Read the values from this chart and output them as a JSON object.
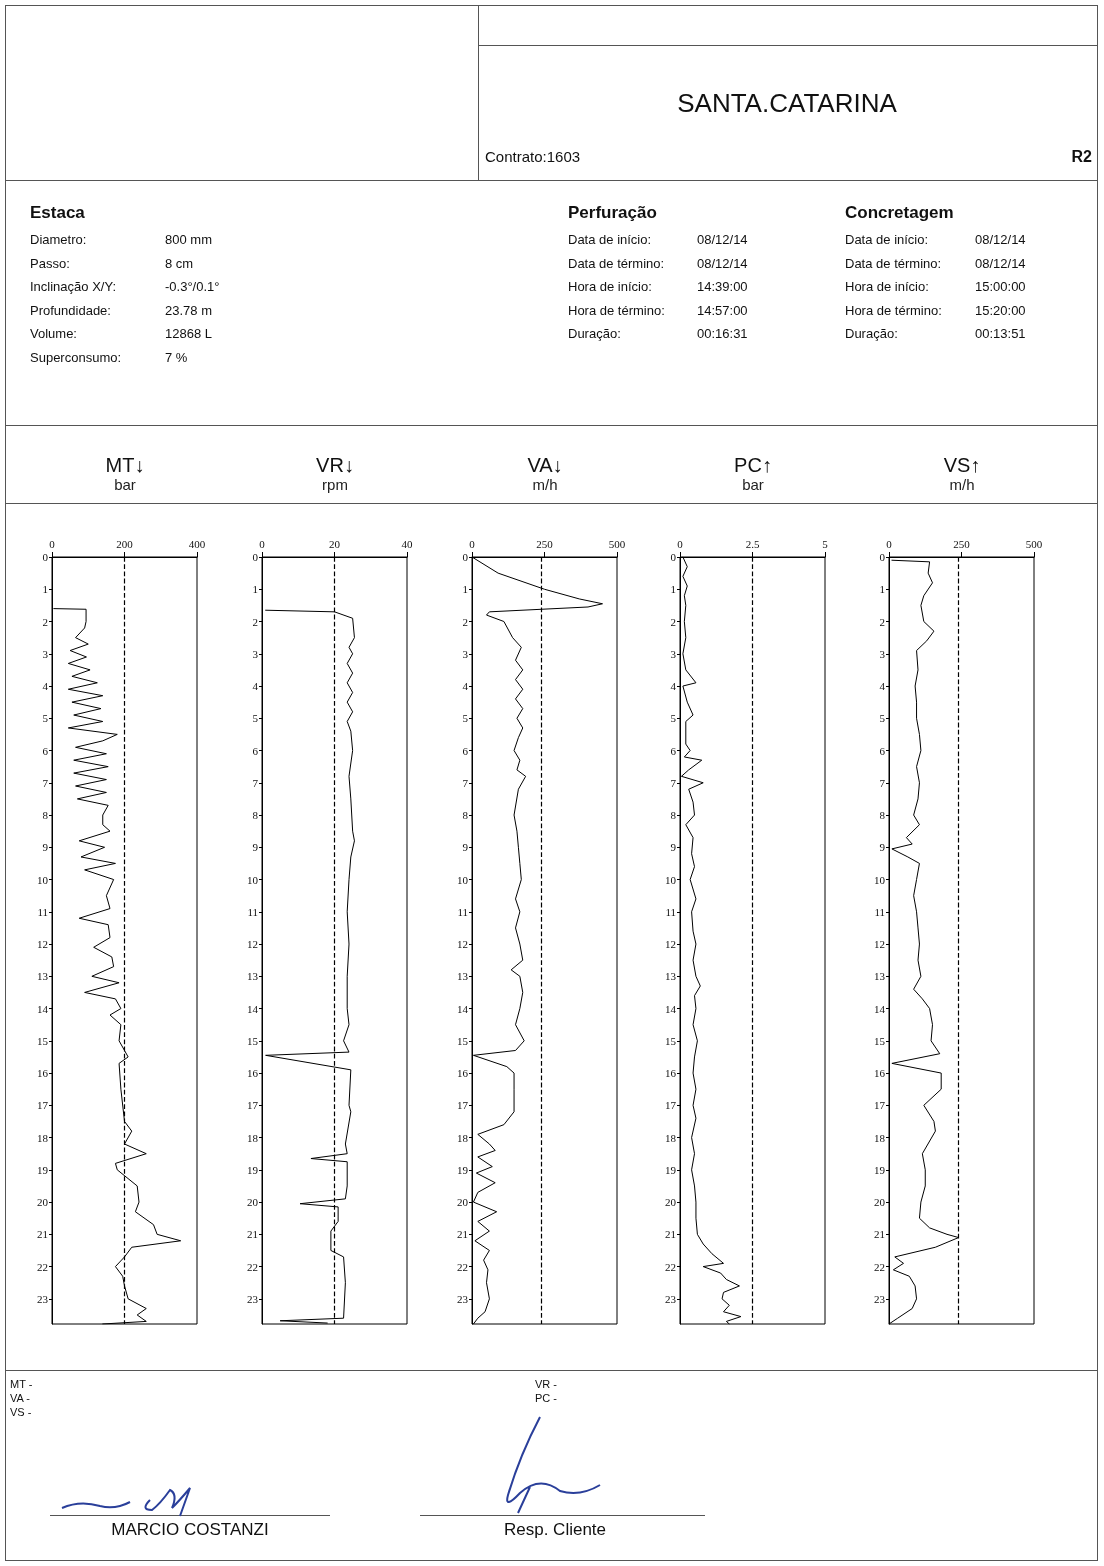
{
  "chart_data": [
    {
      "type": "other",
      "title": "SANTA.CATARINA",
      "annotations": [
        "Contrato:1603",
        "R2",
        "Estaca",
        "Diametro:",
        "800 mm",
        "Passo:",
        "8 cm",
        "Inclinação X/Y:",
        "-0.3°/0.1°",
        "Profundidade:",
        "23.78 m",
        "Volume:",
        "12868 L",
        "Superconsumo:",
        "7 %",
        "Perfuração",
        "Data de início:",
        "08/12/14",
        "Data de término:",
        "08/12/14",
        "Hora de início:",
        "14:39:00",
        "Hora de término:",
        "14:57:00",
        "Duração:",
        "00:16:31",
        "Concretagem",
        "Data de início:",
        "08/12/14",
        "Data de término:",
        "08/12/14",
        "Hora de início:",
        "15:00:00",
        "Hora de término:",
        "15:20:00",
        "Duração:",
        "00:13:51"
      ]
    },
    {
      "type": "line",
      "title": "MT↓",
      "subtitle": "bar",
      "xlim": [
        0,
        400
      ],
      "xticks": [
        0,
        200,
        400
      ],
      "ylim": [
        23.78,
        0
      ],
      "yticks": [
        0,
        1,
        2,
        3,
        4,
        5,
        6,
        7,
        8,
        9,
        10,
        11,
        12,
        13,
        14,
        15,
        16,
        17,
        18,
        19,
        20,
        21,
        22,
        23
      ],
      "grid": false,
      "ref_lines": [
        {
          "axis": "x",
          "value": 200,
          "line_style": "dashed",
          "color": "#000000"
        }
      ],
      "series": [
        {
          "color": "#000000",
          "x": [
            5,
            94,
            94,
            90,
            65,
            100,
            50,
            95,
            45,
            105,
            55,
            125,
            45,
            140,
            55,
            135,
            60,
            140,
            45,
            180,
            140,
            65,
            150,
            60,
            155,
            60,
            150,
            65,
            150,
            70,
            155,
            140,
            140,
            160,
            75,
            145,
            80,
            175,
            90,
            170,
            150,
            160,
            75,
            155,
            160,
            115,
            165,
            170,
            110,
            185,
            90,
            175,
            190,
            160,
            190,
            185,
            210,
            185,
            190,
            200,
            220,
            200,
            260,
            175,
            180,
            235,
            240,
            230,
            280,
            290,
            355,
            220,
            200,
            175,
            195,
            200,
            210,
            260,
            235,
            260,
            140
          ],
          "values": [
            1.6,
            1.62,
            2.0,
            2.2,
            2.5,
            2.7,
            2.9,
            3.1,
            3.3,
            3.5,
            3.7,
            3.9,
            4.1,
            4.3,
            4.5,
            4.7,
            4.9,
            5.1,
            5.3,
            5.5,
            5.7,
            5.9,
            6.1,
            6.3,
            6.5,
            6.7,
            6.9,
            7.1,
            7.3,
            7.5,
            7.7,
            8.0,
            8.3,
            8.5,
            8.8,
            9.0,
            9.3,
            9.5,
            9.7,
            10.0,
            10.5,
            10.9,
            11.2,
            11.4,
            11.8,
            12.1,
            12.4,
            12.7,
            13.0,
            13.2,
            13.5,
            13.7,
            14.0,
            14.2,
            14.5,
            15.0,
            15.5,
            15.7,
            16.5,
            17.5,
            17.8,
            18.2,
            18.5,
            18.8,
            19.0,
            19.5,
            20.0,
            20.3,
            20.7,
            21.0,
            21.2,
            21.4,
            21.7,
            22.0,
            22.3,
            22.6,
            23.0,
            23.3,
            23.5,
            23.7,
            23.78
          ]
        }
      ]
    },
    {
      "type": "line",
      "title": "VR↓",
      "subtitle": "rpm",
      "xlim": [
        0,
        40
      ],
      "xticks": [
        0,
        20,
        40
      ],
      "ylim": [
        23.78,
        0
      ],
      "yticks": [
        0,
        1,
        2,
        3,
        4,
        5,
        6,
        7,
        8,
        9,
        10,
        11,
        12,
        13,
        14,
        15,
        16,
        17,
        18,
        19,
        20,
        21,
        22,
        23
      ],
      "grid": false,
      "ref_lines": [
        {
          "axis": "x",
          "value": 20,
          "line_style": "dashed",
          "color": "#000000"
        }
      ],
      "series": [
        {
          "color": "#000000",
          "x": [
            1,
            20,
            25,
            25.5,
            24,
            25,
            23.5,
            25,
            23.5,
            25,
            23.5,
            25,
            23.5,
            24.5,
            25,
            24,
            24.5,
            25,
            25.5,
            24.5,
            24,
            23.5,
            24,
            23.5,
            23.5,
            24,
            22.5,
            24,
            1,
            24.5,
            24,
            24.5,
            23,
            23.5,
            13.5,
            23.5,
            23.5,
            23,
            10.5,
            21,
            21,
            19,
            19,
            22.5,
            23,
            22.5,
            5,
            18
          ],
          "values": [
            1.65,
            1.7,
            1.9,
            2.5,
            2.8,
            3.0,
            3.3,
            3.6,
            3.9,
            4.2,
            4.5,
            4.8,
            5.1,
            5.4,
            6.0,
            6.8,
            7.5,
            8.5,
            8.8,
            9.3,
            10.0,
            11.0,
            12.0,
            13.0,
            14.0,
            14.5,
            15.0,
            15.35,
            15.45,
            15.9,
            17.0,
            17.2,
            18.2,
            18.5,
            18.65,
            18.75,
            19.5,
            19.9,
            20.05,
            20.15,
            20.6,
            20.9,
            21.5,
            21.7,
            22.5,
            23.6,
            23.68,
            23.75
          ]
        }
      ]
    },
    {
      "type": "line",
      "title": "VA↓",
      "subtitle": "m/h",
      "xlim": [
        0,
        500
      ],
      "xticks": [
        0,
        250,
        500
      ],
      "ylim": [
        23.78,
        0
      ],
      "yticks": [
        0,
        1,
        2,
        3,
        4,
        5,
        6,
        7,
        8,
        9,
        10,
        11,
        12,
        13,
        14,
        15,
        16,
        17,
        18,
        19,
        20,
        21,
        22,
        23
      ],
      "grid": false,
      "ref_lines": [
        {
          "axis": "x",
          "value": 240,
          "line_style": "dashed",
          "color": "#000000"
        }
      ],
      "series": [
        {
          "color": "#000000",
          "x": [
            0,
            90,
            250,
            370,
            450,
            400,
            60,
            50,
            110,
            140,
            170,
            150,
            175,
            150,
            175,
            150,
            175,
            155,
            175,
            160,
            145,
            165,
            155,
            185,
            160,
            145,
            155,
            160,
            165,
            170,
            150,
            165,
            150,
            165,
            175,
            135,
            165,
            175,
            165,
            150,
            180,
            150,
            5,
            120,
            145,
            145,
            145,
            110,
            20,
            60,
            80,
            20,
            70,
            15,
            80,
            20,
            5,
            85,
            20,
            60,
            10,
            60,
            40,
            55,
            50,
            60,
            45,
            20,
            5
          ],
          "values": [
            0,
            0.5,
            1.0,
            1.3,
            1.45,
            1.55,
            1.7,
            1.8,
            2.0,
            2.5,
            2.8,
            3.2,
            3.5,
            3.8,
            4.1,
            4.4,
            4.7,
            5.0,
            5.3,
            5.6,
            6.0,
            6.3,
            6.6,
            6.8,
            7.2,
            8.0,
            8.5,
            9.0,
            9.5,
            10.0,
            10.6,
            11.0,
            11.5,
            12.0,
            12.5,
            12.8,
            13.0,
            13.5,
            14.0,
            14.5,
            15.0,
            15.3,
            15.45,
            15.8,
            16.0,
            16.5,
            17.2,
            17.6,
            17.9,
            18.2,
            18.4,
            18.6,
            18.9,
            19.1,
            19.4,
            19.7,
            20.0,
            20.3,
            20.6,
            20.9,
            21.2,
            21.5,
            21.8,
            22.1,
            22.5,
            23.0,
            23.4,
            23.6,
            23.78
          ]
        }
      ]
    },
    {
      "type": "line",
      "title": "PC↑",
      "subtitle": "bar",
      "xlim": [
        0,
        5
      ],
      "xticks": [
        0,
        2.5,
        5
      ],
      "ylim": [
        23.78,
        0
      ],
      "yticks": [
        0,
        1,
        2,
        3,
        4,
        5,
        6,
        7,
        8,
        9,
        10,
        11,
        12,
        13,
        14,
        15,
        16,
        17,
        18,
        19,
        20,
        21,
        22,
        23
      ],
      "grid": false,
      "ref_lines": [
        {
          "axis": "x",
          "value": 2.5,
          "line_style": "dashed",
          "color": "#000000"
        }
      ],
      "series": [
        {
          "color": "#000000",
          "x": [
            0.1,
            0.25,
            0.1,
            0.25,
            0.15,
            0.2,
            0.15,
            0.2,
            0.1,
            0.2,
            0.55,
            0.1,
            0.25,
            0.45,
            0.2,
            0.2,
            0.35,
            0.15,
            0.75,
            0.3,
            0.05,
            0.8,
            0.3,
            0.45,
            0.5,
            0.2,
            0.45,
            0.4,
            0.5,
            0.35,
            0.55,
            0.4,
            0.45,
            0.55,
            0.45,
            0.55,
            0.7,
            0.5,
            0.55,
            0.45,
            0.6,
            0.5,
            0.45,
            0.55,
            0.45,
            0.55,
            0.4,
            0.5,
            0.4,
            0.5,
            0.55,
            0.55,
            0.6,
            0.8,
            1.1,
            1.5,
            0.8,
            1.4,
            1.6,
            2.05,
            1.5,
            1.45,
            1.7,
            1.5,
            2.1,
            1.6,
            1.7
          ],
          "values": [
            0,
            0.3,
            0.6,
            0.9,
            1.2,
            1.5,
            2,
            2.5,
            3,
            3.5,
            3.9,
            4.0,
            4.5,
            4.9,
            5.1,
            5.8,
            6.0,
            6.2,
            6.3,
            6.6,
            6.8,
            7.0,
            7.2,
            7.6,
            8.0,
            8.3,
            8.7,
            9.2,
            9.6,
            10.0,
            10.6,
            11.0,
            11.6,
            12.0,
            12.5,
            13.0,
            13.3,
            13.6,
            14.0,
            14.5,
            15.0,
            15.5,
            16.0,
            16.5,
            17.0,
            17.4,
            18.0,
            18.5,
            19.0,
            19.5,
            20.0,
            20.5,
            21.0,
            21.3,
            21.6,
            21.9,
            22.0,
            22.2,
            22.4,
            22.6,
            22.8,
            23.0,
            23.2,
            23.4,
            23.55,
            23.7,
            23.78
          ]
        }
      ]
    },
    {
      "type": "line",
      "title": "VS↑",
      "subtitle": "m/h",
      "xlim": [
        0,
        500
      ],
      "xticks": [
        0,
        250,
        500
      ],
      "ylim": [
        23.78,
        0
      ],
      "yticks": [
        0,
        1,
        2,
        3,
        4,
        5,
        6,
        7,
        8,
        9,
        10,
        11,
        12,
        13,
        14,
        15,
        16,
        17,
        18,
        19,
        20,
        21,
        22,
        23
      ],
      "grid": false,
      "ref_lines": [
        {
          "axis": "x",
          "value": 240,
          "line_style": "dashed",
          "color": "#000000"
        }
      ],
      "series": [
        {
          "color": "#000000",
          "x": [
            10,
            140,
            135,
            150,
            120,
            110,
            120,
            155,
            130,
            95,
            100,
            90,
            95,
            95,
            105,
            110,
            95,
            105,
            100,
            85,
            105,
            60,
            80,
            10,
            65,
            105,
            95,
            85,
            95,
            100,
            105,
            100,
            110,
            85,
            115,
            140,
            150,
            145,
            175,
            10,
            180,
            180,
            120,
            155,
            160,
            115,
            125,
            125,
            110,
            105,
            140,
            200,
            240,
            160,
            20,
            50,
            15,
            70,
            90,
            95,
            80,
            30,
            0
          ],
          "values": [
            0.1,
            0.15,
            0.5,
            0.8,
            1.2,
            1.5,
            2.0,
            2.3,
            2.6,
            2.9,
            3.5,
            4.0,
            4.5,
            5.0,
            5.5,
            6.0,
            6.5,
            7.0,
            7.5,
            8.0,
            8.3,
            8.7,
            8.9,
            9.05,
            9.3,
            9.5,
            10.0,
            10.5,
            11.0,
            11.5,
            12.0,
            12.5,
            13.0,
            13.4,
            13.7,
            14.0,
            14.5,
            15.0,
            15.4,
            15.7,
            16.0,
            16.5,
            17.0,
            17.5,
            17.8,
            18.5,
            19.0,
            19.5,
            20.0,
            20.5,
            20.8,
            21.0,
            21.1,
            21.4,
            21.7,
            21.9,
            22.1,
            22.3,
            22.6,
            23.0,
            23.3,
            23.6,
            23.78
          ]
        }
      ]
    },
    {
      "type": "other",
      "annotations": [
        "MT -",
        "VA -",
        "VS -",
        "VR -",
        "PC -",
        "MARCIO COSTANZI",
        "Resp. Cliente"
      ]
    }
  ]
}
